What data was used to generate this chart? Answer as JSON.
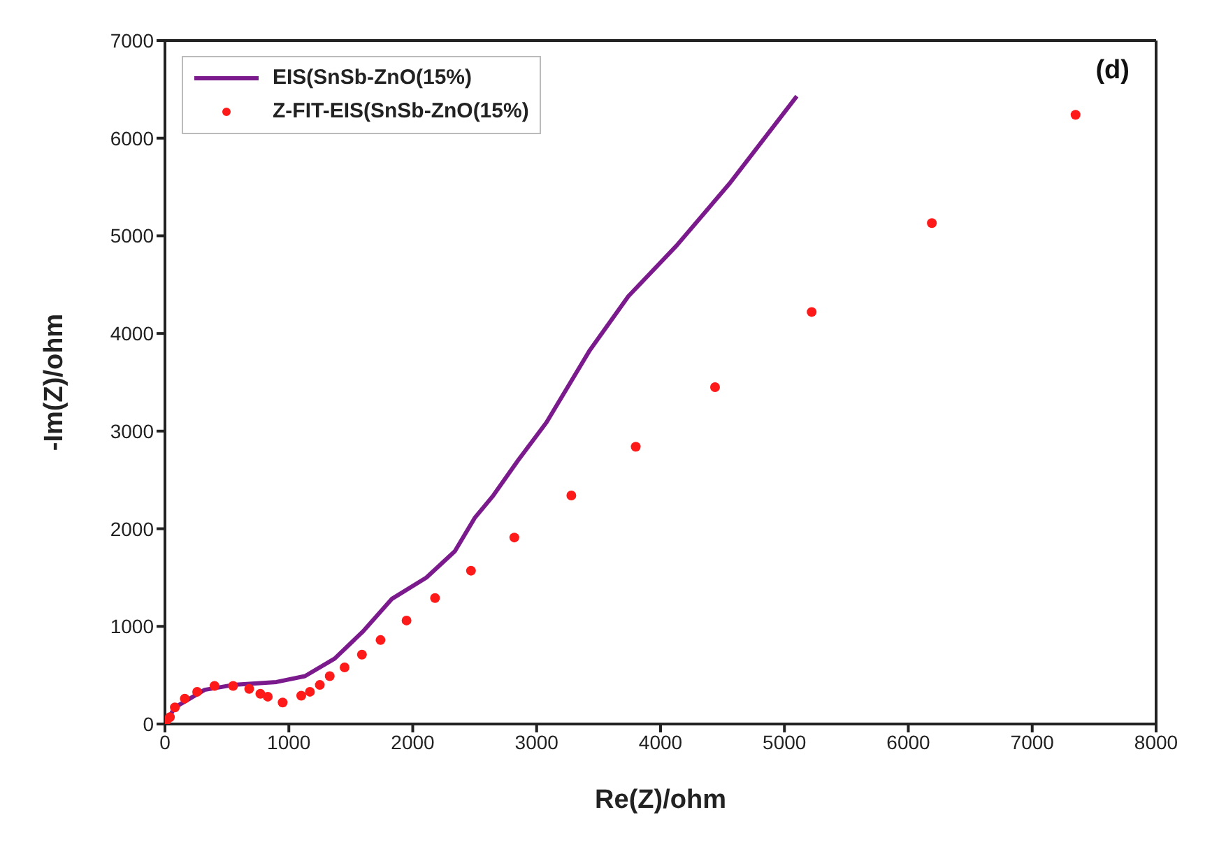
{
  "chart_data": {
    "type": "scatter",
    "xlabel": "Re(Z)/ohm",
    "ylabel": "-Im(Z)/ohm",
    "annotations": [
      "(d)"
    ],
    "xlim": [
      0,
      8000
    ],
    "xticks": [
      0,
      1000,
      2000,
      3000,
      4000,
      5000,
      6000,
      7000,
      8000
    ],
    "ylim": [
      0,
      7000
    ],
    "yticks": [
      0,
      1000,
      2000,
      3000,
      4000,
      5000,
      6000,
      7000
    ],
    "grid": false,
    "legend": "top left",
    "series": [
      {
        "name": "EIS(SnSb-ZnO(15%)",
        "type": "line",
        "color": "#7b1a8c",
        "marker": "none",
        "line_style": "solid",
        "x": [
          0,
          80,
          320,
          550,
          900,
          1130,
          1370,
          1600,
          1830,
          2110,
          2340,
          2500,
          2650,
          2850,
          3080,
          3430,
          3740,
          4130,
          4560,
          5100
        ],
        "values": [
          0,
          170,
          350,
          400,
          430,
          490,
          670,
          950,
          1280,
          1500,
          1770,
          2110,
          2340,
          2700,
          3090,
          3830,
          4380,
          4900,
          5540,
          6430
        ]
      },
      {
        "name": "Z-FIT-EIS(SnSb-ZnO(15%)",
        "color": "#ff1a1a",
        "marker": "circle",
        "x": [
          10,
          40,
          80,
          160,
          260,
          400,
          550,
          680,
          770,
          830,
          950,
          1100,
          1170,
          1250,
          1330,
          1450,
          1590,
          1740,
          1950,
          2180,
          2470,
          2820,
          3280,
          3800,
          4440,
          5220,
          6190,
          7350
        ],
        "values": [
          30,
          70,
          170,
          260,
          330,
          390,
          390,
          360,
          310,
          280,
          220,
          290,
          330,
          400,
          490,
          580,
          710,
          860,
          1060,
          1290,
          1570,
          1910,
          2340,
          2840,
          3450,
          4220,
          5130,
          6240
        ]
      }
    ]
  }
}
